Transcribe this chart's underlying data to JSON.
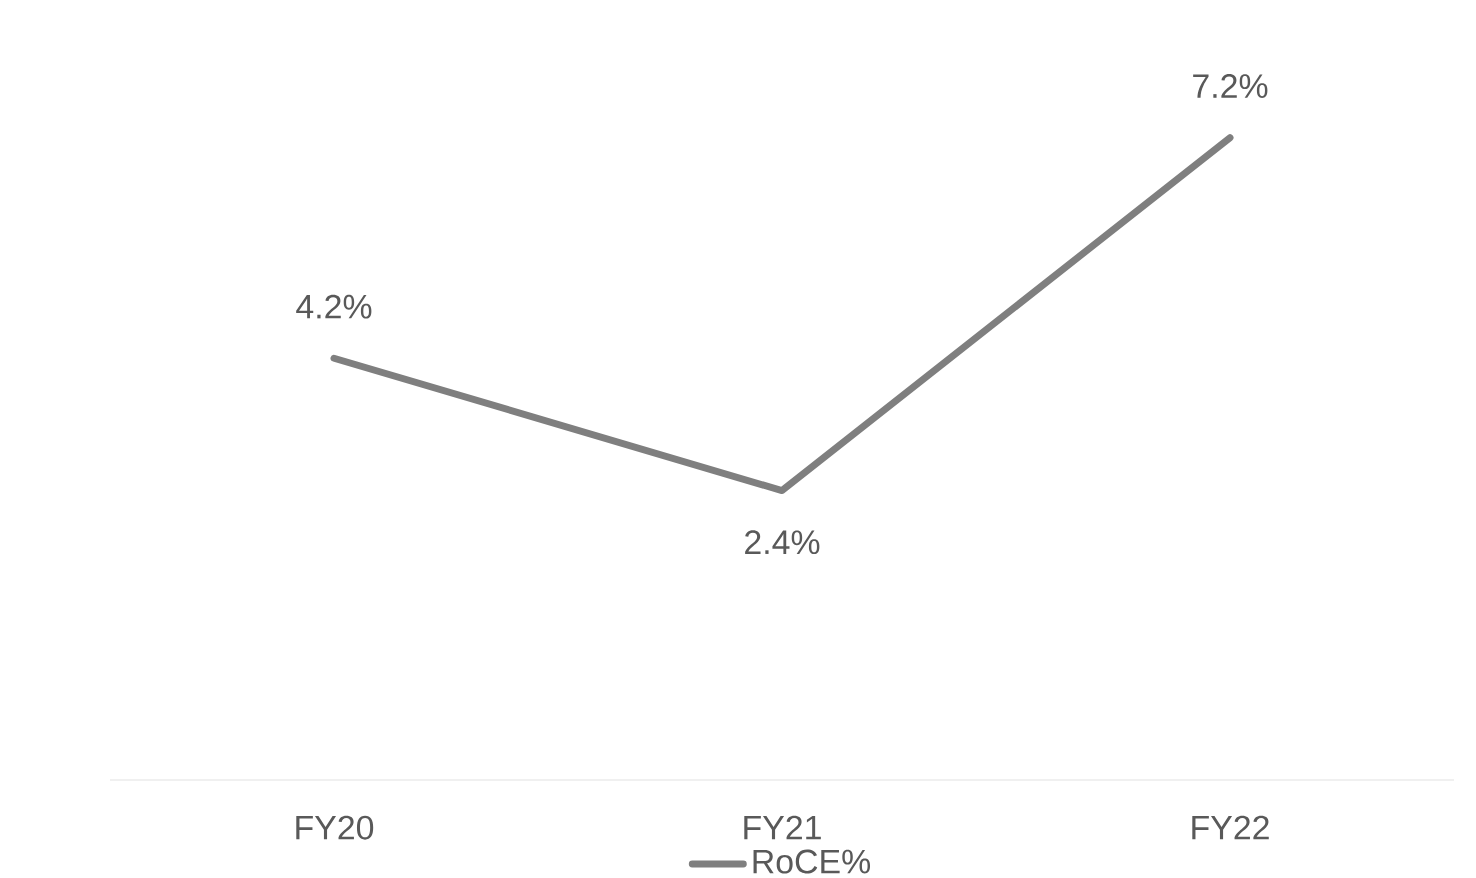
{
  "chart_data": {
    "type": "line",
    "categories": [
      "FY20",
      "FY21",
      "FY22"
    ],
    "series": [
      {
        "name": "RoCE%",
        "color": "#7f7f7f",
        "values": [
          4.2,
          2.4,
          7.2
        ],
        "value_labels": [
          "4.2%",
          "2.4%",
          "7.2%"
        ]
      }
    ],
    "legend": "bottom",
    "grid": false,
    "marker": "none",
    "line_style": "solid"
  }
}
